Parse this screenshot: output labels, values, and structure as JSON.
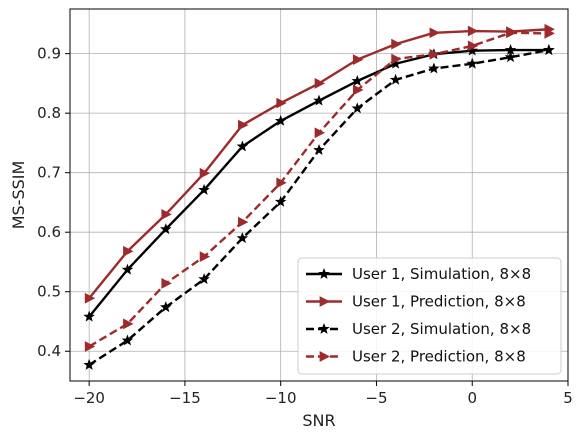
{
  "chart_data": {
    "type": "line",
    "title": "",
    "xlabel": "SNR",
    "ylabel": "MS-SSIM",
    "xlim": [
      -21,
      5
    ],
    "ylim": [
      0.35,
      0.975
    ],
    "xticks": [
      -20,
      -15,
      -10,
      -5,
      0,
      5
    ],
    "xtick_labels": [
      "−20",
      "−15",
      "−10",
      "−5",
      "0",
      "5"
    ],
    "yticks": [
      0.4,
      0.5,
      0.6,
      0.7,
      0.8,
      0.9
    ],
    "ytick_labels": [
      "0.4",
      "0.5",
      "0.6",
      "0.7",
      "0.8",
      "0.9"
    ],
    "grid": true,
    "legend_position": "bottom-right",
    "x": [
      -20,
      -18,
      -16,
      -14,
      -12,
      -10,
      -8,
      -6,
      -4,
      -2,
      0,
      2,
      4
    ],
    "series": [
      {
        "name": "User 1, Simulation, 8×8",
        "color": "#000000",
        "dash": "solid",
        "marker": "star",
        "values": [
          0.458,
          0.537,
          0.605,
          0.671,
          0.744,
          0.787,
          0.821,
          0.854,
          0.883,
          0.899,
          0.905,
          0.906,
          0.906
        ]
      },
      {
        "name": "User 1, Prediction, 8×8",
        "color": "#9e2a2b",
        "dash": "solid",
        "marker": "triangle-right",
        "values": [
          0.489,
          0.568,
          0.63,
          0.699,
          0.78,
          0.817,
          0.85,
          0.89,
          0.916,
          0.935,
          0.938,
          0.937,
          0.941
        ]
      },
      {
        "name": "User 2, Simulation, 8×8",
        "color": "#000000",
        "dash": "dashed",
        "marker": "star",
        "values": [
          0.377,
          0.418,
          0.474,
          0.521,
          0.59,
          0.651,
          0.738,
          0.808,
          0.856,
          0.875,
          0.883,
          0.894,
          0.906
        ]
      },
      {
        "name": "User 2, Prediction, 8×8",
        "color": "#9e2a2b",
        "dash": "dashed",
        "marker": "triangle-right",
        "values": [
          0.408,
          0.446,
          0.514,
          0.559,
          0.617,
          0.683,
          0.767,
          0.839,
          0.891,
          0.899,
          0.913,
          0.935,
          0.934
        ]
      }
    ]
  }
}
